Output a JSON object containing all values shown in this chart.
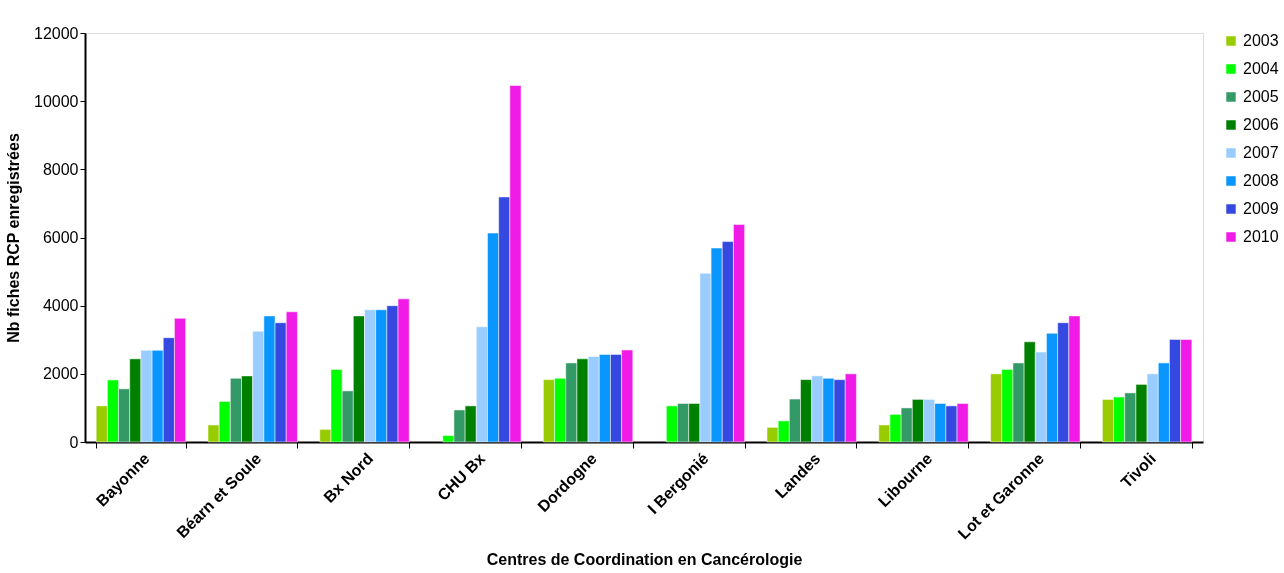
{
  "chart_data": {
    "type": "bar",
    "xlabel": "Centres de Coordination  en Cancérologie",
    "ylabel": "Nb fiches RCP enregistrées",
    "categories": [
      "Bayonne",
      "Béarn et Soule",
      "Bx Nord",
      "CHU Bx",
      "Dordogne",
      "I Bergonié",
      "Landes",
      "Libourne",
      "Lot et Garonne",
      "Tivoli"
    ],
    "series": [
      {
        "name": "2003",
        "color": "#99cc00",
        "values": [
          1060,
          500,
          370,
          null,
          1830,
          null,
          430,
          500,
          2000,
          1250
        ]
      },
      {
        "name": "2004",
        "color": "#00ff00",
        "values": [
          1820,
          1190,
          2130,
          190,
          1870,
          1060,
          620,
          810,
          2130,
          1320
        ]
      },
      {
        "name": "2005",
        "color": "#339966",
        "values": [
          1560,
          1870,
          1500,
          940,
          2320,
          1130,
          1260,
          1000,
          2320,
          1440
        ]
      },
      {
        "name": "2006",
        "color": "#008000",
        "values": [
          2440,
          1940,
          3700,
          1060,
          2440,
          1130,
          1830,
          1250,
          2940,
          1690
        ]
      },
      {
        "name": "2007",
        "color": "#99ccff",
        "values": [
          2690,
          3250,
          3880,
          3380,
          2510,
          4950,
          1940,
          1250,
          2640,
          2000
        ]
      },
      {
        "name": "2008",
        "color": "#0a96ff",
        "values": [
          2690,
          3700,
          3880,
          6130,
          2570,
          5690,
          1870,
          1130,
          3190,
          2320
        ]
      },
      {
        "name": "2009",
        "color": "#3549e0",
        "values": [
          3060,
          3500,
          4000,
          7190,
          2570,
          5880,
          1830,
          1060,
          3500,
          3010
        ]
      },
      {
        "name": "2010",
        "color": "#f01be6",
        "values": [
          3630,
          3820,
          4200,
          10460,
          2700,
          6380,
          2000,
          1130,
          3700,
          3010
        ]
      }
    ],
    "ylim": [
      0,
      12000
    ],
    "yticks": [
      0,
      2000,
      4000,
      6000,
      8000,
      10000,
      12000
    ],
    "grid": false,
    "legend": "top right"
  }
}
